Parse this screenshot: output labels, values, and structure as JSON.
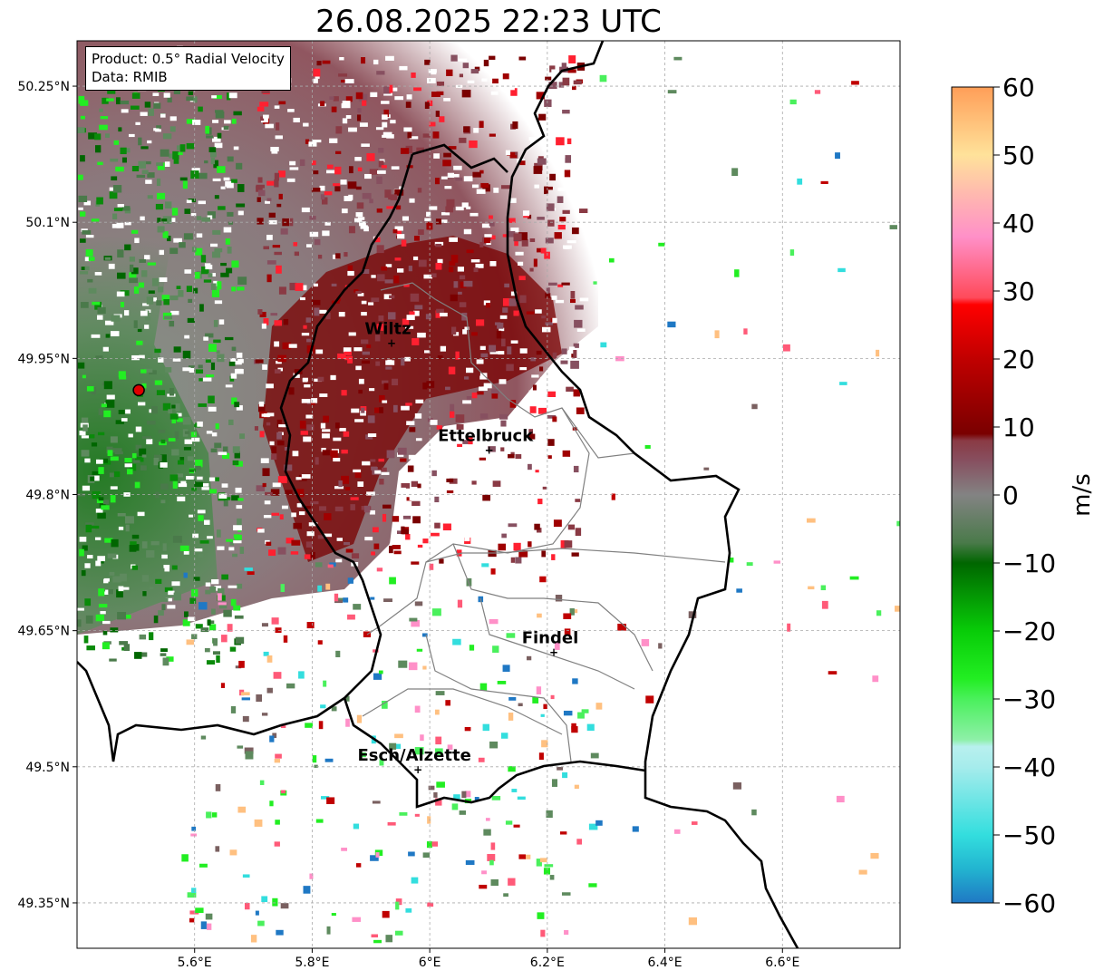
{
  "title": "26.08.2025 22:23 UTC",
  "info_box": {
    "product": "Product: 0.5° Radial Velocity",
    "data": "Data: RMIB"
  },
  "map": {
    "lon_range": [
      5.4,
      6.8
    ],
    "lat_range": [
      49.3,
      50.3
    ],
    "x_ticks": [
      {
        "value": 5.6,
        "label": "5.6°E"
      },
      {
        "value": 5.8,
        "label": "5.8°E"
      },
      {
        "value": 6.0,
        "label": "6°E"
      },
      {
        "value": 6.2,
        "label": "6.2°E"
      },
      {
        "value": 6.4,
        "label": "6.4°E"
      },
      {
        "value": 6.6,
        "label": "6.6°E"
      }
    ],
    "y_ticks": [
      {
        "value": 49.35,
        "label": "49.35°N"
      },
      {
        "value": 49.5,
        "label": "49.5°N"
      },
      {
        "value": 49.65,
        "label": "49.65°N"
      },
      {
        "value": 49.8,
        "label": "49.8°N"
      },
      {
        "value": 49.95,
        "label": "49.95°N"
      },
      {
        "value": 50.1,
        "label": "50.1°N"
      },
      {
        "value": 50.25,
        "label": "50.25°N"
      }
    ],
    "grid": true,
    "radar_site": {
      "lon": 5.505,
      "lat": 49.915
    },
    "cities": [
      {
        "name": "Wiltz",
        "lon": 5.935,
        "lat": 49.967
      },
      {
        "name": "Ettelbruck",
        "lon": 6.101,
        "lat": 49.849
      },
      {
        "name": "Findel",
        "lon": 6.211,
        "lat": 49.626
      },
      {
        "name": "Esch/Alzette",
        "lon": 5.98,
        "lat": 49.497
      }
    ]
  },
  "colorbar": {
    "label": "m/s",
    "min": -60,
    "max": 60,
    "ticks": [
      {
        "value": 60,
        "label": "60"
      },
      {
        "value": 50,
        "label": "50"
      },
      {
        "value": 40,
        "label": "40"
      },
      {
        "value": 30,
        "label": "30"
      },
      {
        "value": 20,
        "label": "20"
      },
      {
        "value": 10,
        "label": "10"
      },
      {
        "value": 0,
        "label": "0"
      },
      {
        "value": -10,
        "label": "−10"
      },
      {
        "value": -20,
        "label": "−20"
      },
      {
        "value": -30,
        "label": "−30"
      },
      {
        "value": -40,
        "label": "−40"
      },
      {
        "value": -50,
        "label": "−50"
      },
      {
        "value": -60,
        "label": "−60"
      }
    ],
    "color_stops": [
      {
        "v": -60,
        "c": "#1f78c4"
      },
      {
        "v": -55,
        "c": "#22b4d0"
      },
      {
        "v": -50,
        "c": "#33dede"
      },
      {
        "v": -40,
        "c": "#a6ecec"
      },
      {
        "v": -37,
        "c": "#b8f0ee"
      },
      {
        "v": -36,
        "c": "#8ef0a8"
      },
      {
        "v": -30,
        "c": "#4af05c"
      },
      {
        "v": -27,
        "c": "#22ee22"
      },
      {
        "v": -20,
        "c": "#08cc08"
      },
      {
        "v": -10,
        "c": "#006600"
      },
      {
        "v": -7,
        "c": "#4a7a4a"
      },
      {
        "v": 0,
        "c": "#838383"
      },
      {
        "v": 5,
        "c": "#875060"
      },
      {
        "v": 8,
        "c": "#8a3a44"
      },
      {
        "v": 9,
        "c": "#7a0000"
      },
      {
        "v": 20,
        "c": "#c00000"
      },
      {
        "v": 28,
        "c": "#ff0000"
      },
      {
        "v": 29,
        "c": "#ff4a5a"
      },
      {
        "v": 38,
        "c": "#ff90c8"
      },
      {
        "v": 43,
        "c": "#ffb0b4"
      },
      {
        "v": 50,
        "c": "#ffe29a"
      },
      {
        "v": 60,
        "c": "#ff9e58"
      }
    ]
  }
}
